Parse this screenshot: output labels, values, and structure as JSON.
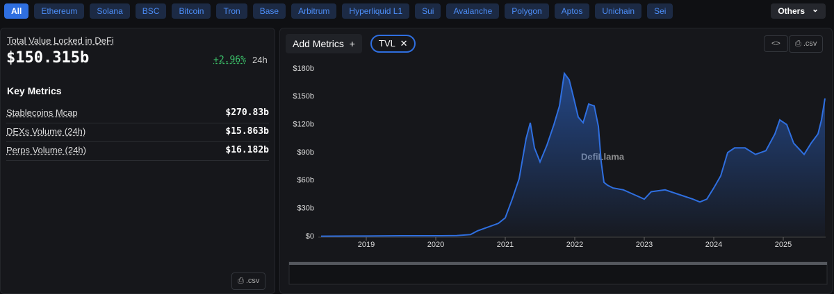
{
  "nav": {
    "tabs": [
      "All",
      "Ethereum",
      "Solana",
      "BSC",
      "Bitcoin",
      "Tron",
      "Base",
      "Arbitrum",
      "Hyperliquid L1",
      "Sui",
      "Avalanche",
      "Polygon",
      "Aptos",
      "Unichain",
      "Sei"
    ],
    "others": "Others"
  },
  "summary": {
    "title": "Total Value Locked in DeFi",
    "value": "$150.315b",
    "change": "+2.96%",
    "period": "24h"
  },
  "key_metrics": {
    "title": "Key Metrics",
    "rows": [
      {
        "label": "Stablecoins Mcap",
        "value": "$270.83b"
      },
      {
        "label": "DEXs Volume (24h)",
        "value": "$15.863b"
      },
      {
        "label": "Perps Volume (24h)",
        "value": "$16.182b"
      }
    ]
  },
  "csv": ".csv",
  "toolbar": {
    "add_metrics": "Add Metrics",
    "metric": "TVL"
  },
  "watermark": "DefiLlama",
  "chart_data": {
    "type": "area",
    "color": "#2f6fe0",
    "grid": false,
    "x": [
      2018.35,
      2019,
      2019.5,
      2020,
      2020.3,
      2020.5,
      2020.6,
      2020.75,
      2020.9,
      2021,
      2021.1,
      2021.2,
      2021.3,
      2021.36,
      2021.42,
      2021.5,
      2021.6,
      2021.7,
      2021.78,
      2021.85,
      2021.92,
      2021.98,
      2022.05,
      2022.12,
      2022.2,
      2022.28,
      2022.34,
      2022.38,
      2022.42,
      2022.47,
      2022.55,
      2022.7,
      2022.85,
      2023,
      2023.1,
      2023.3,
      2023.5,
      2023.7,
      2023.8,
      2023.9,
      2024,
      2024.1,
      2024.2,
      2024.3,
      2024.45,
      2024.6,
      2024.75,
      2024.88,
      2024.95,
      2025.05,
      2025.15,
      2025.3,
      2025.4,
      2025.5,
      2025.55,
      2025.6
    ],
    "values": [
      0.3,
      0.5,
      0.7,
      0.7,
      0.9,
      2,
      6,
      10,
      14,
      20,
      40,
      62,
      105,
      122,
      95,
      80,
      98,
      120,
      140,
      175,
      168,
      150,
      128,
      122,
      142,
      140,
      118,
      80,
      58,
      55,
      52,
      50,
      45,
      40,
      48,
      50,
      45,
      40,
      37,
      40,
      52,
      65,
      90,
      95,
      95,
      88,
      92,
      110,
      125,
      120,
      100,
      88,
      100,
      110,
      125,
      148
    ],
    "xlim": [
      2018.31,
      2025.61
    ],
    "ylim": [
      0,
      180
    ],
    "xticks": [
      2019,
      2020,
      2021,
      2022,
      2023,
      2024,
      2025
    ],
    "yticks": [
      {
        "value": 0,
        "label": "$0"
      },
      {
        "value": 30,
        "label": "$30b"
      },
      {
        "value": 60,
        "label": "$60b"
      },
      {
        "value": 90,
        "label": "$90b"
      },
      {
        "value": 120,
        "label": "$120b"
      },
      {
        "value": 150,
        "label": "$150b"
      },
      {
        "value": 180,
        "label": "$180b"
      }
    ]
  }
}
